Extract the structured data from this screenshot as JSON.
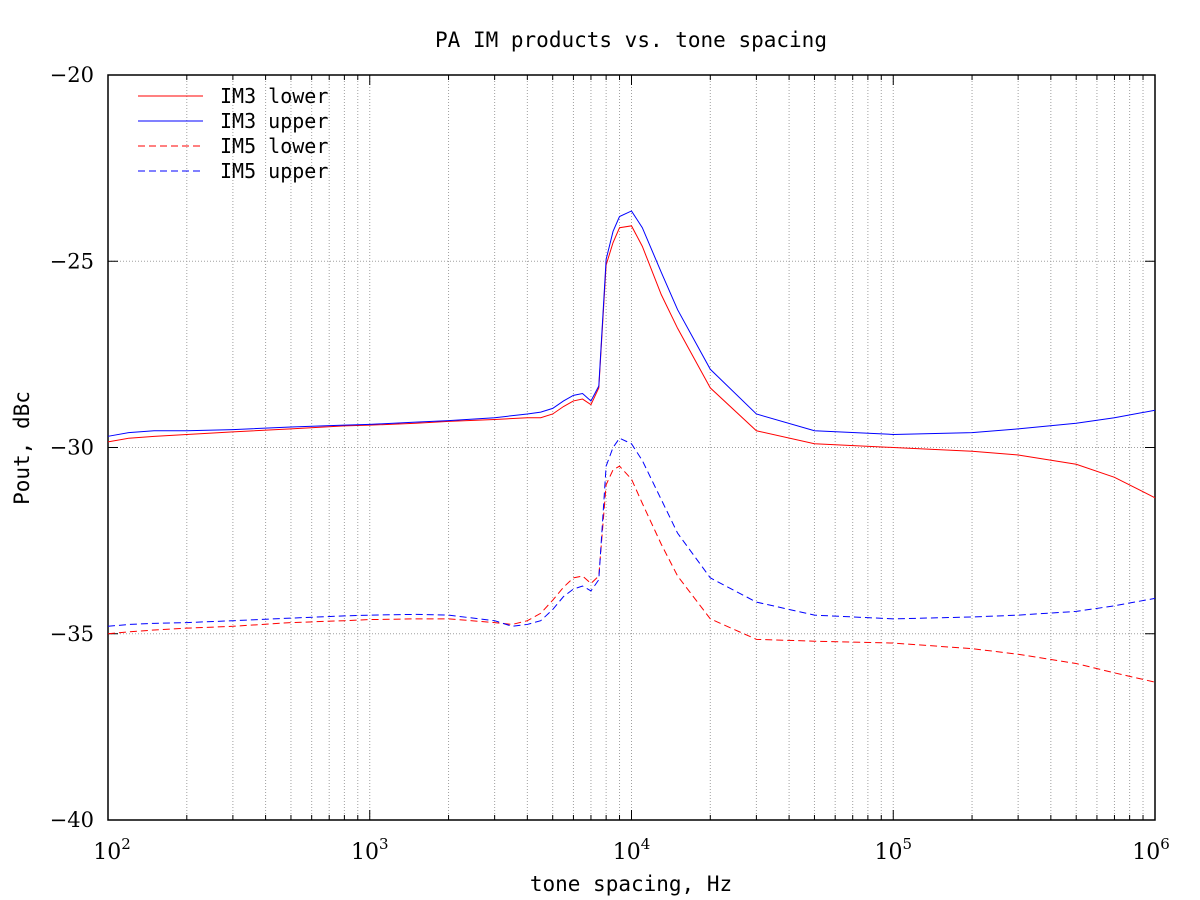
{
  "chart_data": {
    "type": "line",
    "title": "PA IM products vs. tone spacing",
    "xlabel": "tone spacing, Hz",
    "ylabel": "Pout, dBc",
    "xscale": "log",
    "xlim": [
      100,
      1000000
    ],
    "ylim": [
      -40,
      -20
    ],
    "y_ticks": [
      -20,
      -25,
      -30,
      -35,
      -40
    ],
    "x_ticks": [
      {
        "value": 100,
        "base": "10",
        "exp": "2"
      },
      {
        "value": 1000,
        "base": "10",
        "exp": "3"
      },
      {
        "value": 10000,
        "base": "10",
        "exp": "4"
      },
      {
        "value": 100000,
        "base": "10",
        "exp": "5"
      },
      {
        "value": 1000000,
        "base": "10",
        "exp": "6"
      }
    ],
    "grid": true,
    "legend_position": "top-left",
    "series": [
      {
        "name": "IM3 lower",
        "color": "#ff0000",
        "dash": "solid",
        "x": [
          100,
          120,
          150,
          200,
          300,
          500,
          800,
          1000,
          1500,
          2000,
          3000,
          4000,
          4500,
          5000,
          5500,
          6000,
          6500,
          7000,
          7500,
          8000,
          8500,
          9000,
          10000,
          11000,
          13000,
          15000,
          20000,
          30000,
          50000,
          100000,
          200000,
          300000,
          500000,
          700000,
          1000000
        ],
        "y": [
          -29.85,
          -29.75,
          -29.7,
          -29.65,
          -29.58,
          -29.5,
          -29.42,
          -29.4,
          -29.35,
          -29.3,
          -29.25,
          -29.2,
          -29.2,
          -29.1,
          -28.9,
          -28.75,
          -28.7,
          -28.85,
          -28.4,
          -25.1,
          -24.5,
          -24.1,
          -24.05,
          -24.6,
          -25.9,
          -26.8,
          -28.4,
          -29.55,
          -29.9,
          -30.0,
          -30.1,
          -30.2,
          -30.45,
          -30.8,
          -31.35
        ]
      },
      {
        "name": "IM3 upper",
        "color": "#0000ff",
        "dash": "solid",
        "x": [
          100,
          120,
          150,
          200,
          300,
          500,
          800,
          1000,
          1500,
          2000,
          3000,
          4000,
          4500,
          5000,
          5500,
          6000,
          6500,
          7000,
          7500,
          8000,
          8500,
          9000,
          10000,
          11000,
          13000,
          15000,
          20000,
          30000,
          50000,
          100000,
          200000,
          300000,
          500000,
          700000,
          1000000
        ],
        "y": [
          -29.7,
          -29.6,
          -29.55,
          -29.55,
          -29.52,
          -29.45,
          -29.4,
          -29.38,
          -29.32,
          -29.28,
          -29.2,
          -29.1,
          -29.05,
          -28.95,
          -28.75,
          -28.6,
          -28.55,
          -28.75,
          -28.35,
          -24.95,
          -24.2,
          -23.8,
          -23.65,
          -24.1,
          -25.3,
          -26.3,
          -27.9,
          -29.1,
          -29.55,
          -29.65,
          -29.6,
          -29.5,
          -29.35,
          -29.2,
          -29.0
        ]
      },
      {
        "name": "IM5 lower",
        "color": "#ff0000",
        "dash": "dashed",
        "x": [
          100,
          120,
          150,
          200,
          300,
          500,
          800,
          1000,
          1500,
          2000,
          3000,
          3500,
          4000,
          4500,
          5000,
          5500,
          6000,
          6500,
          7000,
          7500,
          8000,
          8500,
          9000,
          10000,
          11000,
          13000,
          15000,
          20000,
          30000,
          50000,
          100000,
          200000,
          300000,
          500000,
          700000,
          1000000
        ],
        "y": [
          -35.0,
          -34.95,
          -34.9,
          -34.85,
          -34.8,
          -34.7,
          -34.65,
          -34.62,
          -34.6,
          -34.6,
          -34.7,
          -34.75,
          -34.65,
          -34.45,
          -34.1,
          -33.75,
          -33.5,
          -33.45,
          -33.65,
          -33.45,
          -31.0,
          -30.6,
          -30.5,
          -30.85,
          -31.5,
          -32.6,
          -33.45,
          -34.6,
          -35.15,
          -35.2,
          -35.25,
          -35.4,
          -35.55,
          -35.8,
          -36.05,
          -36.3
        ]
      },
      {
        "name": "IM5 upper",
        "color": "#0000ff",
        "dash": "dashed",
        "x": [
          100,
          120,
          150,
          200,
          300,
          500,
          800,
          1000,
          1500,
          2000,
          3000,
          3500,
          4000,
          4500,
          5000,
          5500,
          6000,
          6500,
          7000,
          7500,
          8000,
          8500,
          9000,
          10000,
          11000,
          13000,
          15000,
          20000,
          30000,
          50000,
          100000,
          200000,
          300000,
          500000,
          700000,
          1000000
        ],
        "y": [
          -34.8,
          -34.75,
          -34.72,
          -34.7,
          -34.65,
          -34.58,
          -34.52,
          -34.5,
          -34.48,
          -34.5,
          -34.65,
          -34.8,
          -34.75,
          -34.65,
          -34.35,
          -34.0,
          -33.8,
          -33.72,
          -33.85,
          -33.55,
          -30.5,
          -30.0,
          -29.75,
          -29.9,
          -30.35,
          -31.4,
          -32.3,
          -33.5,
          -34.15,
          -34.5,
          -34.6,
          -34.55,
          -34.5,
          -34.4,
          -34.25,
          -34.05
        ]
      }
    ]
  }
}
